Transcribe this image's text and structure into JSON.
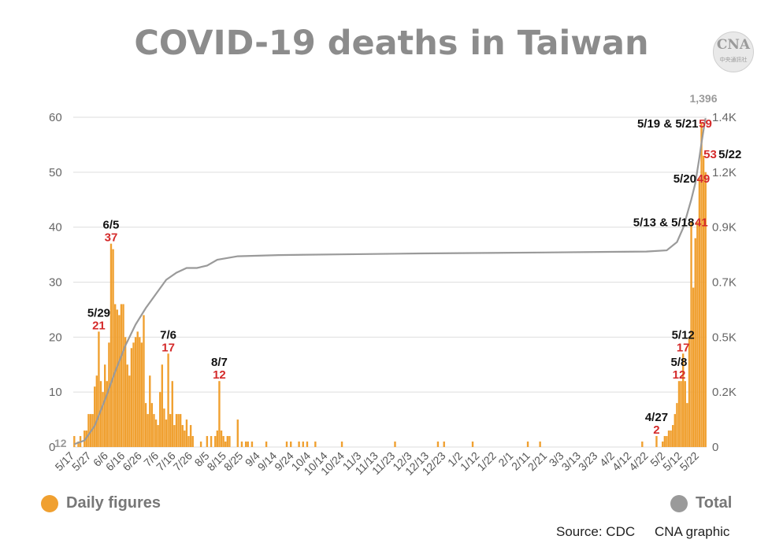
{
  "title": "COVID-19 deaths in Taiwan",
  "logo": {
    "text": "CNA",
    "subtext": "中央通訊社"
  },
  "legend": {
    "daily": {
      "label": "Daily figures",
      "color": "#f0a030"
    },
    "total": {
      "label": "Total",
      "color": "#9a9a9a"
    }
  },
  "source": {
    "text": "Source: CDC",
    "graphic": "CNA graphic"
  },
  "chart_data": {
    "type": "bar",
    "title": "COVID-19 deaths in Taiwan",
    "left_axis": {
      "ticks": [
        0,
        10,
        20,
        30,
        40,
        50,
        60
      ],
      "ylim": [
        0,
        60
      ]
    },
    "right_axis": {
      "tick_labels": [
        "0",
        "0.2K",
        "0.5K",
        "0.7K",
        "0.9K",
        "1.2K",
        "1.4K"
      ],
      "ylim": [
        0,
        1400
      ]
    },
    "x_tick_labels": [
      "5/17",
      "5/27",
      "6/6",
      "6/16",
      "6/26",
      "7/6",
      "7/16",
      "7/26",
      "8/5",
      "8/15",
      "8/25",
      "9/4",
      "9/14",
      "9/24",
      "10/4",
      "10/14",
      "10/24",
      "11/3",
      "11/13",
      "11/23",
      "12/3",
      "12/13",
      "12/23",
      "1/2",
      "1/12",
      "1/22",
      "2/1",
      "2/11",
      "2/21",
      "3/3",
      "3/13",
      "3/23",
      "4/2",
      "4/12",
      "4/22",
      "5/2",
      "5/12",
      "5/22"
    ],
    "grid": true,
    "series": [
      {
        "name": "Daily figures",
        "kind": "bar",
        "points": [
          [
            0,
            2
          ],
          [
            2,
            1
          ],
          [
            3,
            2
          ],
          [
            5,
            3
          ],
          [
            6,
            3
          ],
          [
            7,
            6
          ],
          [
            8,
            6
          ],
          [
            9,
            6
          ],
          [
            10,
            11
          ],
          [
            11,
            13
          ],
          [
            12,
            21
          ],
          [
            13,
            12
          ],
          [
            14,
            10
          ],
          [
            15,
            15
          ],
          [
            16,
            12
          ],
          [
            17,
            19
          ],
          [
            18,
            37
          ],
          [
            19,
            36
          ],
          [
            20,
            26
          ],
          [
            21,
            25
          ],
          [
            22,
            24
          ],
          [
            23,
            26
          ],
          [
            24,
            26
          ],
          [
            25,
            20
          ],
          [
            26,
            15
          ],
          [
            27,
            13
          ],
          [
            28,
            18
          ],
          [
            29,
            19
          ],
          [
            30,
            20
          ],
          [
            31,
            21
          ],
          [
            32,
            20
          ],
          [
            33,
            19
          ],
          [
            34,
            24
          ],
          [
            35,
            8
          ],
          [
            36,
            6
          ],
          [
            37,
            13
          ],
          [
            38,
            8
          ],
          [
            39,
            6
          ],
          [
            40,
            5
          ],
          [
            41,
            4
          ],
          [
            42,
            10
          ],
          [
            43,
            15
          ],
          [
            44,
            7
          ],
          [
            45,
            5
          ],
          [
            46,
            17
          ],
          [
            47,
            6
          ],
          [
            48,
            12
          ],
          [
            49,
            4
          ],
          [
            50,
            6
          ],
          [
            51,
            6
          ],
          [
            52,
            6
          ],
          [
            53,
            4
          ],
          [
            54,
            3
          ],
          [
            55,
            5
          ],
          [
            56,
            2
          ],
          [
            57,
            4
          ],
          [
            58,
            2
          ],
          [
            62,
            1
          ],
          [
            65,
            2
          ],
          [
            67,
            2
          ],
          [
            69,
            2
          ],
          [
            70,
            3
          ],
          [
            71,
            12
          ],
          [
            72,
            3
          ],
          [
            73,
            2
          ],
          [
            74,
            1
          ],
          [
            75,
            2
          ],
          [
            76,
            2
          ],
          [
            80,
            5
          ],
          [
            82,
            1
          ],
          [
            84,
            1
          ],
          [
            85,
            1
          ],
          [
            87,
            1
          ],
          [
            94,
            1
          ],
          [
            104,
            1
          ],
          [
            106,
            1
          ],
          [
            110,
            1
          ],
          [
            112,
            1
          ],
          [
            114,
            1
          ],
          [
            118,
            1
          ],
          [
            131,
            1
          ],
          [
            157,
            1
          ],
          [
            178,
            1
          ],
          [
            181,
            1
          ],
          [
            195,
            1
          ],
          [
            222,
            1
          ],
          [
            228,
            1
          ],
          [
            278,
            1
          ],
          [
            285,
            2
          ],
          [
            288,
            1
          ],
          [
            289,
            2
          ],
          [
            290,
            2
          ],
          [
            291,
            3
          ],
          [
            292,
            3
          ],
          [
            293,
            4
          ],
          [
            294,
            6
          ],
          [
            295,
            8
          ],
          [
            296,
            12
          ],
          [
            297,
            12
          ],
          [
            298,
            17
          ],
          [
            299,
            12
          ],
          [
            300,
            8
          ],
          [
            301,
            20
          ],
          [
            302,
            41
          ],
          [
            303,
            29
          ],
          [
            304,
            38
          ],
          [
            305,
            41
          ],
          [
            306,
            49
          ],
          [
            307,
            59
          ],
          [
            308,
            53
          ],
          [
            309,
            50
          ]
        ]
      },
      {
        "name": "Total",
        "kind": "line",
        "points": [
          [
            0,
            12
          ],
          [
            5,
            28
          ],
          [
            10,
            90
          ],
          [
            15,
            200
          ],
          [
            20,
            320
          ],
          [
            25,
            430
          ],
          [
            30,
            520
          ],
          [
            35,
            590
          ],
          [
            40,
            650
          ],
          [
            45,
            710
          ],
          [
            50,
            740
          ],
          [
            55,
            760
          ],
          [
            60,
            760
          ],
          [
            65,
            770
          ],
          [
            70,
            795
          ],
          [
            80,
            810
          ],
          [
            100,
            815
          ],
          [
            130,
            818
          ],
          [
            170,
            822
          ],
          [
            230,
            826
          ],
          [
            280,
            830
          ],
          [
            290,
            835
          ],
          [
            295,
            870
          ],
          [
            298,
            930
          ],
          [
            300,
            990
          ],
          [
            302,
            1050
          ],
          [
            304,
            1120
          ],
          [
            306,
            1230
          ],
          [
            307,
            1290
          ],
          [
            308,
            1345
          ],
          [
            309,
            1396
          ]
        ]
      }
    ],
    "annotations": [
      {
        "date": "6/5",
        "value": "37",
        "x": 18,
        "y": 37
      },
      {
        "date": "5/29",
        "value": "21",
        "x": 12,
        "y": 21
      },
      {
        "date": "7/6",
        "value": "17",
        "x": 46,
        "y": 17
      },
      {
        "date": "8/7",
        "value": "12",
        "x": 71,
        "y": 12
      },
      {
        "date": "4/27",
        "value": "2",
        "x": 285,
        "y": 2
      },
      {
        "date": "5/8",
        "value": "12",
        "x": 296,
        "y": 12
      },
      {
        "date": "5/12",
        "value": "17",
        "x": 298,
        "y": 17
      },
      {
        "date": "5/13 & 5/18",
        "value": "41",
        "x": 305,
        "y": 41
      },
      {
        "date": "5/20",
        "value": "49",
        "x": 306,
        "y": 49
      },
      {
        "date": "5/19 & 5/21",
        "value": "59",
        "x": 307,
        "y": 59
      },
      {
        "date": "5/22",
        "value": "53",
        "x": 308,
        "y": 53
      }
    ],
    "start_total_label": "12",
    "end_total_label": "1,396"
  }
}
